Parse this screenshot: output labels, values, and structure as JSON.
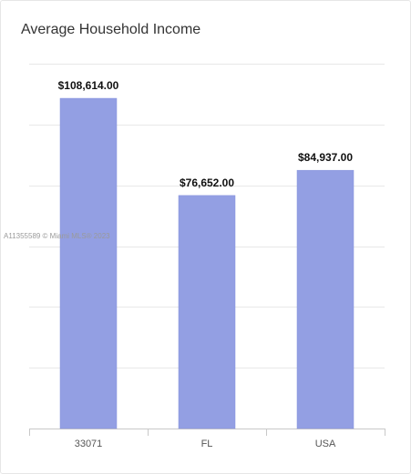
{
  "chart_data": {
    "type": "bar",
    "title": "Average Household Income",
    "categories": [
      "33071",
      "FL",
      "USA"
    ],
    "values": [
      108614,
      76652,
      84937
    ],
    "value_labels": [
      "$108,614.00",
      "$76,652.00",
      "$84,937.00"
    ],
    "xlabel": "",
    "ylabel": "",
    "ylim": [
      0,
      120000
    ],
    "grid": true,
    "legend": "none"
  },
  "colors": {
    "bar": "#939fe3",
    "bar_border": "#8591dc",
    "grid": "#e8e8e8",
    "axis": "#c8c8c8",
    "label": "#111111",
    "tick": "#555555"
  },
  "watermark": "A11355589 © Miami MLS® 2023"
}
